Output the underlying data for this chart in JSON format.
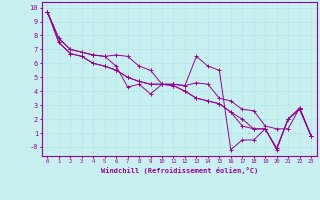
{
  "xlabel": "Windchill (Refroidissement éolien,°C)",
  "bg_color": "#c8f0f0",
  "grid_color": "#b8e8e8",
  "line_color": "#990099",
  "xlim": [
    -0.5,
    23.5
  ],
  "ylim": [
    -0.65,
    10.4
  ],
  "xticks": [
    0,
    1,
    2,
    3,
    4,
    5,
    6,
    7,
    8,
    9,
    10,
    11,
    12,
    13,
    14,
    15,
    16,
    17,
    18,
    19,
    20,
    21,
    22,
    23
  ],
  "yticks": [
    0,
    1,
    2,
    3,
    4,
    5,
    6,
    7,
    8,
    9,
    10
  ],
  "ytick_labels": [
    "-0",
    "1",
    "2",
    "3",
    "4",
    "5",
    "6",
    "7",
    "8",
    "9",
    "10"
  ],
  "series1": [
    [
      0,
      9.7
    ],
    [
      1,
      7.8
    ],
    [
      2,
      7.0
    ],
    [
      3,
      6.8
    ],
    [
      4,
      6.6
    ],
    [
      5,
      6.5
    ],
    [
      6,
      6.6
    ],
    [
      7,
      6.5
    ],
    [
      8,
      5.8
    ],
    [
      9,
      5.5
    ],
    [
      10,
      4.5
    ],
    [
      11,
      4.5
    ],
    [
      12,
      4.4
    ],
    [
      13,
      6.5
    ],
    [
      14,
      5.8
    ],
    [
      15,
      5.5
    ],
    [
      16,
      -0.2
    ],
    [
      17,
      0.5
    ],
    [
      18,
      0.5
    ],
    [
      19,
      1.3
    ],
    [
      20,
      -0.2
    ],
    [
      21,
      2.0
    ],
    [
      22,
      2.8
    ],
    [
      23,
      0.8
    ]
  ],
  "series2": [
    [
      0,
      9.7
    ],
    [
      1,
      7.8
    ],
    [
      2,
      7.0
    ],
    [
      3,
      6.8
    ],
    [
      4,
      6.6
    ],
    [
      5,
      6.5
    ],
    [
      6,
      5.8
    ],
    [
      7,
      4.3
    ],
    [
      8,
      4.5
    ],
    [
      9,
      3.8
    ],
    [
      10,
      4.5
    ],
    [
      11,
      4.5
    ],
    [
      12,
      4.4
    ],
    [
      13,
      4.6
    ],
    [
      14,
      4.5
    ],
    [
      15,
      3.5
    ],
    [
      16,
      3.3
    ],
    [
      17,
      2.7
    ],
    [
      18,
      2.6
    ],
    [
      19,
      1.5
    ],
    [
      20,
      1.3
    ],
    [
      21,
      1.3
    ],
    [
      22,
      2.8
    ],
    [
      23,
      0.8
    ]
  ],
  "series3": [
    [
      0,
      9.7
    ],
    [
      1,
      7.5
    ],
    [
      2,
      6.7
    ],
    [
      3,
      6.5
    ],
    [
      4,
      6.0
    ],
    [
      5,
      5.8
    ],
    [
      6,
      5.5
    ],
    [
      7,
      5.0
    ],
    [
      8,
      4.7
    ],
    [
      9,
      4.5
    ],
    [
      10,
      4.5
    ],
    [
      11,
      4.4
    ],
    [
      12,
      4.0
    ],
    [
      13,
      3.5
    ],
    [
      14,
      3.3
    ],
    [
      15,
      3.1
    ],
    [
      16,
      2.5
    ],
    [
      17,
      1.5
    ],
    [
      18,
      1.3
    ],
    [
      19,
      1.3
    ],
    [
      20,
      -0.1
    ],
    [
      21,
      2.0
    ],
    [
      22,
      2.7
    ],
    [
      23,
      0.8
    ]
  ],
  "series4": [
    [
      0,
      9.7
    ],
    [
      1,
      7.5
    ],
    [
      2,
      6.7
    ],
    [
      3,
      6.5
    ],
    [
      4,
      6.0
    ],
    [
      5,
      5.8
    ],
    [
      6,
      5.5
    ],
    [
      7,
      5.0
    ],
    [
      8,
      4.7
    ],
    [
      9,
      4.5
    ],
    [
      10,
      4.5
    ],
    [
      11,
      4.4
    ],
    [
      12,
      4.0
    ],
    [
      13,
      3.5
    ],
    [
      14,
      3.3
    ],
    [
      15,
      3.1
    ],
    [
      16,
      2.5
    ],
    [
      17,
      2.0
    ],
    [
      18,
      1.3
    ],
    [
      19,
      1.3
    ],
    [
      20,
      -0.1
    ],
    [
      21,
      2.0
    ],
    [
      22,
      2.7
    ],
    [
      23,
      0.8
    ]
  ]
}
